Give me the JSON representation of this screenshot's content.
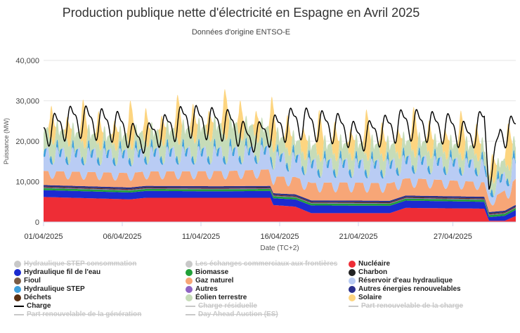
{
  "header": {
    "title": "Production publique nette d'électricité en Espagne en Avril 2025",
    "subtitle": "Données d'origine ENTSO-E"
  },
  "chart_data": {
    "type": "area",
    "stacked": true,
    "xlabel": "Date (TC+2)",
    "ylabel": "Puissance (MW)",
    "ylim": [
      0,
      40000
    ],
    "yticks": [
      "0",
      "10,000",
      "20,000",
      "30,000",
      "40,000"
    ],
    "xlim_days": [
      1,
      31
    ],
    "xticks": [
      {
        "day": 1,
        "label": "01/04/2025"
      },
      {
        "day": 6,
        "label": "06/04/2025"
      },
      {
        "day": 11,
        "label": "11/04/2025"
      },
      {
        "day": 16,
        "label": "16/04/2025"
      },
      {
        "day": 21,
        "label": "21/04/2025"
      },
      {
        "day": 27,
        "label": "27/04/2025"
      }
    ],
    "grid": true,
    "legend_position": "bottom",
    "series": [
      {
        "name": "Nucléaire",
        "color": "#ee2d36",
        "visible": true,
        "points": [
          [
            1,
            6200
          ],
          [
            6.5,
            5600
          ],
          [
            7.5,
            6000
          ],
          [
            12,
            6000
          ],
          [
            14,
            6000
          ],
          [
            15.4,
            6000
          ],
          [
            15.6,
            4200
          ],
          [
            17,
            3800
          ],
          [
            18,
            2200
          ],
          [
            23,
            2200
          ],
          [
            24,
            3500
          ],
          [
            29,
            3300
          ],
          [
            29.3,
            300
          ],
          [
            30.3,
            300
          ],
          [
            31,
            1500
          ]
        ]
      },
      {
        "name": "Hydraulique fil de l'eau",
        "color": "#1b2bd0",
        "visible": true,
        "points": [
          [
            1,
            1700
          ],
          [
            7,
            1700
          ],
          [
            12,
            1600
          ],
          [
            16,
            1700
          ],
          [
            18,
            1900
          ],
          [
            24,
            1800
          ],
          [
            29,
            1700
          ],
          [
            29.3,
            900
          ],
          [
            31,
            1500
          ]
        ]
      },
      {
        "name": "Biomasse",
        "color": "#21a038",
        "visible": true,
        "points": [
          [
            1,
            500
          ],
          [
            31,
            500
          ]
        ]
      },
      {
        "name": "Autres",
        "color": "#8f64c4",
        "visible": true,
        "points": [
          [
            1,
            150
          ],
          [
            31,
            150
          ]
        ]
      },
      {
        "name": "Déchets",
        "color": "#5a3012",
        "visible": true,
        "points": [
          [
            1,
            200
          ],
          [
            31,
            200
          ]
        ]
      },
      {
        "name": "Autres énergies renouvelables",
        "color": "#2a2f8c",
        "visible": true,
        "points": [
          [
            1,
            400
          ],
          [
            31,
            400
          ]
        ]
      },
      {
        "name": "Gaz naturel",
        "color": "#f7a677",
        "visible": true,
        "points": [
          [
            1,
            3500
          ],
          [
            8,
            3600
          ],
          [
            13,
            3800
          ],
          [
            16,
            4200
          ],
          [
            20,
            4500
          ],
          [
            25,
            4200
          ],
          [
            29,
            3600
          ],
          [
            29.3,
            3000
          ],
          [
            31,
            6500
          ]
        ]
      },
      {
        "name": "Réservoir d'eau hydraulique",
        "color": "#b9ccf4",
        "visible": true,
        "points": [
          [
            1,
            5000
          ],
          [
            10,
            5200
          ],
          [
            16,
            5200
          ],
          [
            24,
            5000
          ],
          [
            29,
            4800
          ],
          [
            29.3,
            2500
          ],
          [
            31,
            5000
          ]
        ]
      },
      {
        "name": "Hydraulique STEP",
        "color": "#3fa0dc",
        "visible": true,
        "points": [
          [
            1,
            900
          ],
          [
            31,
            900
          ]
        ]
      },
      {
        "name": "Éolien terrestre",
        "color": "#c6dcb8",
        "visible": true,
        "points": [
          [
            1,
            5000
          ],
          [
            5,
            3500
          ],
          [
            9,
            4500
          ],
          [
            13,
            6000
          ],
          [
            17,
            3500
          ],
          [
            21,
            4200
          ],
          [
            25,
            3800
          ],
          [
            29,
            3500
          ],
          [
            29.3,
            3000
          ],
          [
            31,
            3500
          ]
        ]
      },
      {
        "name": "Solaire",
        "color": "#fdd580",
        "visible": true,
        "points": [
          [
            1,
            11000
          ],
          [
            10,
            11500
          ],
          [
            16,
            12000
          ],
          [
            24,
            11500
          ],
          [
            31,
            11000
          ]
        ]
      },
      {
        "name": "Charbon",
        "color": "#222222",
        "visible": true,
        "points": [
          [
            1,
            0
          ],
          [
            31,
            0
          ]
        ]
      },
      {
        "name": "Fioul",
        "color": "#7b5c45",
        "visible": true,
        "points": [
          [
            1,
            0
          ],
          [
            31,
            0
          ]
        ]
      },
      {
        "name": "Charge",
        "color": "#000000",
        "visible": true,
        "line": true,
        "points": [
          [
            1,
            25500
          ],
          [
            3,
            29000
          ],
          [
            6,
            27000
          ],
          [
            7,
            23000
          ],
          [
            10,
            29000
          ],
          [
            13,
            27500
          ],
          [
            14,
            23500
          ],
          [
            17,
            28500
          ],
          [
            20,
            26500
          ],
          [
            21,
            24000
          ],
          [
            24,
            28000
          ],
          [
            27,
            26500
          ],
          [
            28,
            24000
          ],
          [
            29,
            28500
          ],
          [
            29.3,
            11000
          ],
          [
            30,
            25000
          ],
          [
            31,
            26500
          ]
        ]
      }
    ],
    "hidden_series": [
      "Hydraulique STEP consommation",
      "Les échanges commerciaux aux frontières",
      "Charge résiduelle",
      "Part renouvelable de la génération",
      "Part renouvelable de la charge",
      "Day Ahead Auction (ES)"
    ]
  },
  "legend": [
    {
      "label": "Hydraulique STEP consommation",
      "color": "#c8c8c8",
      "kind": "dot",
      "on": false
    },
    {
      "label": "Les échanges commerciaux aux frontières",
      "color": "#c8c8c8",
      "kind": "dot",
      "on": false
    },
    {
      "label": "Nucléaire",
      "color": "#ee2d36",
      "kind": "dot",
      "on": true
    },
    {
      "label": "Hydraulique fil de l'eau",
      "color": "#1b2bd0",
      "kind": "dot",
      "on": true
    },
    {
      "label": "Biomasse",
      "color": "#21a038",
      "kind": "dot",
      "on": true
    },
    {
      "label": "Charbon",
      "color": "#222222",
      "kind": "dot",
      "on": true
    },
    {
      "label": "Fioul",
      "color": "#7b5c45",
      "kind": "dot",
      "on": true
    },
    {
      "label": "Gaz naturel",
      "color": "#f7a677",
      "kind": "dot",
      "on": true
    },
    {
      "label": "Réservoir d'eau hydraulique",
      "color": "#b9ccf4",
      "kind": "dot",
      "on": true
    },
    {
      "label": "Hydraulique STEP",
      "color": "#3fa0dc",
      "kind": "dot",
      "on": true
    },
    {
      "label": "Autres",
      "color": "#8f64c4",
      "kind": "dot",
      "on": true
    },
    {
      "label": "Autres énergies renouvelables",
      "color": "#2a2f8c",
      "kind": "dot",
      "on": true
    },
    {
      "label": "Déchets",
      "color": "#5a3012",
      "kind": "dot",
      "on": true
    },
    {
      "label": "Éolien terrestre",
      "color": "#c6dcb8",
      "kind": "dot",
      "on": true
    },
    {
      "label": "Solaire",
      "color": "#fdd580",
      "kind": "dot",
      "on": true
    },
    {
      "label": "Charge",
      "color": "#000000",
      "kind": "line",
      "on": true
    },
    {
      "label": "Charge résiduelle",
      "color": "#c8c8c8",
      "kind": "line",
      "on": false
    },
    {
      "label": "Part renouvelable de la charge",
      "color": "#c8c8c8",
      "kind": "line",
      "on": false
    },
    {
      "label": "Part renouvelable de la génération",
      "color": "#c8c8c8",
      "kind": "line",
      "on": false
    },
    {
      "label": "Day Ahead Auction (ES)",
      "color": "#c8c8c8",
      "kind": "line",
      "on": false
    }
  ]
}
